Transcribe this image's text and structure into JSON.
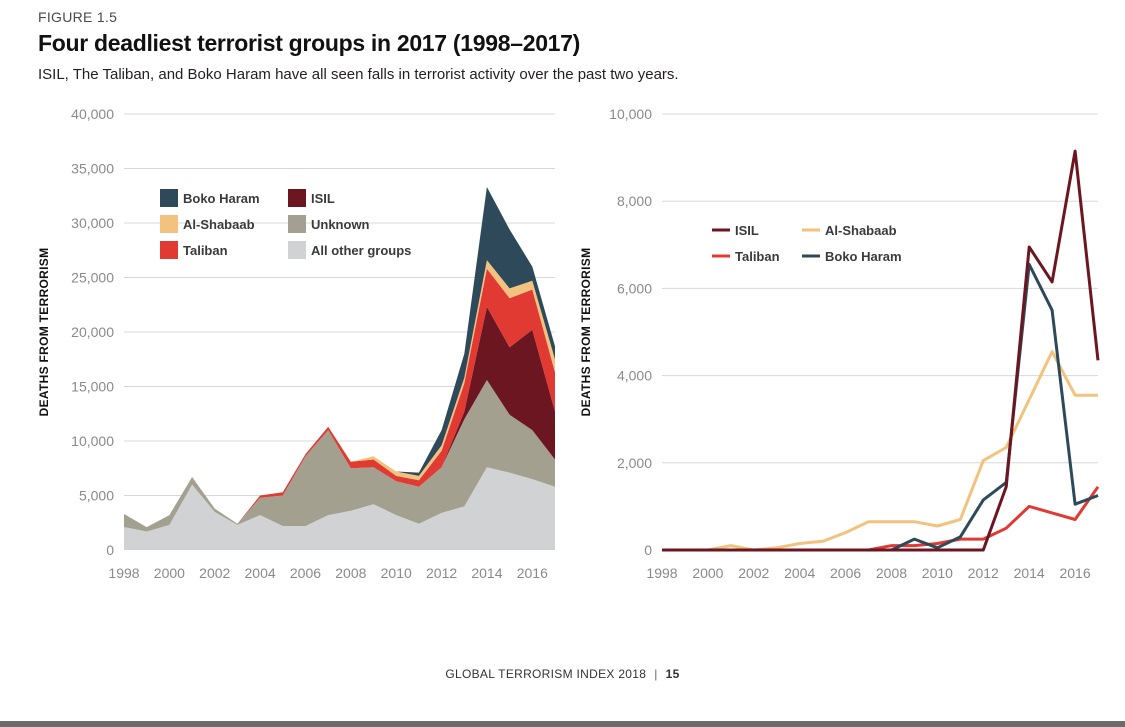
{
  "figure_label": "FIGURE 1.5",
  "title": "Four deadliest terrorist groups in 2017 (1998–2017)",
  "subtitle": "ISIL, The Taliban, and Boko Haram have all seen falls in terrorist activity over the past two years.",
  "footer": {
    "publication": "GLOBAL TERRORISM INDEX 2018",
    "page": "15"
  },
  "colors": {
    "isil": "#6b1620",
    "taliban": "#e03a32",
    "al_shabaab": "#f2c27e",
    "boko_haram": "#2e4a5a",
    "unknown": "#a3a090",
    "other": "#d1d2d4",
    "grid": "#d8d8d8"
  },
  "chart_data": [
    {
      "type": "area",
      "stacked": true,
      "title": "",
      "xlabel": "",
      "ylabel": "DEATHS FROM TERRORISM",
      "ylim": [
        0,
        40000
      ],
      "yticks": [
        0,
        5000,
        10000,
        15000,
        20000,
        25000,
        30000,
        35000,
        40000
      ],
      "ytick_labels": [
        "0",
        "5,000",
        "10,000",
        "15,000",
        "20,000",
        "25,000",
        "30,000",
        "35,000",
        "40,000"
      ],
      "xlim": [
        1998,
        2017
      ],
      "xticks": [
        1998,
        2000,
        2002,
        2004,
        2006,
        2008,
        2010,
        2012,
        2014,
        2016
      ],
      "xtick_labels": [
        "1998",
        "2000",
        "2002",
        "2004",
        "2006",
        "2008",
        "2010",
        "2012",
        "2014",
        "2016"
      ],
      "x": [
        1998,
        1999,
        2000,
        2001,
        2002,
        2003,
        2004,
        2005,
        2006,
        2007,
        2008,
        2009,
        2010,
        2011,
        2012,
        2013,
        2014,
        2015,
        2016,
        2017
      ],
      "series": [
        {
          "name": "All other groups",
          "key": "other",
          "values": [
            2100,
            1700,
            2300,
            6000,
            3500,
            2300,
            3200,
            2200,
            2200,
            3200,
            3600,
            4200,
            3200,
            2400,
            3400,
            4000,
            7600,
            7100,
            6500,
            5800
          ]
        },
        {
          "name": "Unknown",
          "key": "unknown",
          "values": [
            1200,
            400,
            900,
            700,
            300,
            100,
            1600,
            2800,
            6400,
            7800,
            3900,
            3400,
            3100,
            3400,
            4200,
            8000,
            8000,
            5300,
            4500,
            2500
          ]
        },
        {
          "name": "ISIL",
          "key": "isil",
          "values": [
            0,
            0,
            0,
            0,
            0,
            0,
            0,
            0,
            0,
            0,
            0,
            0,
            0,
            0,
            0,
            700,
            6700,
            6200,
            9200,
            4400
          ]
        },
        {
          "name": "Taliban",
          "key": "taliban",
          "values": [
            0,
            0,
            0,
            0,
            0,
            0,
            200,
            300,
            200,
            300,
            600,
            700,
            500,
            600,
            1500,
            2600,
            3500,
            4500,
            3700,
            3600
          ]
        },
        {
          "name": "Al-Shabaab",
          "key": "al_shabaab",
          "values": [
            0,
            0,
            0,
            0,
            0,
            0,
            0,
            0,
            0,
            0,
            0,
            300,
            400,
            400,
            500,
            500,
            800,
            900,
            800,
            1200
          ]
        },
        {
          "name": "Boko Haram",
          "key": "boko_haram",
          "values": [
            0,
            0,
            0,
            0,
            0,
            0,
            0,
            0,
            0,
            0,
            0,
            0,
            0,
            300,
            1400,
            2200,
            6700,
            5400,
            1300,
            1200
          ]
        }
      ],
      "legend": [
        {
          "name": "Boko Haram",
          "key": "boko_haram"
        },
        {
          "name": "ISIL",
          "key": "isil"
        },
        {
          "name": "Al-Shabaab",
          "key": "al_shabaab"
        },
        {
          "name": "Unknown",
          "key": "unknown"
        },
        {
          "name": "Taliban",
          "key": "taliban"
        },
        {
          "name": "All other groups",
          "key": "other"
        }
      ],
      "legend_position": "top-left"
    },
    {
      "type": "line",
      "title": "",
      "xlabel": "",
      "ylabel": "DEATHS FROM TERRORISM",
      "ylim": [
        0,
        10000
      ],
      "yticks": [
        0,
        2000,
        4000,
        6000,
        8000,
        10000
      ],
      "ytick_labels": [
        "0",
        "2,000",
        "4,000",
        "6,000",
        "8,000",
        "10,000"
      ],
      "xlim": [
        1998,
        2017
      ],
      "xticks": [
        1998,
        2000,
        2002,
        2004,
        2006,
        2008,
        2010,
        2012,
        2014,
        2016
      ],
      "xtick_labels": [
        "1998",
        "2000",
        "2002",
        "2004",
        "2006",
        "2008",
        "2010",
        "2012",
        "2014",
        "2016"
      ],
      "x": [
        1998,
        1999,
        2000,
        2001,
        2002,
        2003,
        2004,
        2005,
        2006,
        2007,
        2008,
        2009,
        2010,
        2011,
        2012,
        2013,
        2014,
        2015,
        2016,
        2017
      ],
      "series": [
        {
          "name": "Al-Shabaab",
          "key": "al_shabaab",
          "values": [
            0,
            0,
            0,
            100,
            0,
            50,
            150,
            200,
            400,
            650,
            650,
            650,
            550,
            700,
            2050,
            2350,
            3450,
            4550,
            3550,
            3550
          ]
        },
        {
          "name": "Taliban",
          "key": "taliban",
          "values": [
            0,
            0,
            0,
            0,
            0,
            0,
            0,
            0,
            0,
            0,
            100,
            100,
            150,
            250,
            250,
            500,
            1000,
            850,
            700,
            1450
          ]
        },
        {
          "name": "Boko Haram",
          "key": "boko_haram",
          "values": [
            0,
            0,
            0,
            0,
            0,
            0,
            0,
            0,
            0,
            0,
            0,
            250,
            50,
            300,
            1150,
            1550,
            6550,
            5500,
            1050,
            1250
          ]
        },
        {
          "name": "ISIL",
          "key": "isil",
          "values": [
            0,
            0,
            0,
            0,
            0,
            0,
            0,
            0,
            0,
            0,
            0,
            0,
            0,
            0,
            0,
            1450,
            6950,
            6150,
            9150,
            4350
          ]
        }
      ],
      "legend": [
        {
          "name": "ISIL",
          "key": "isil"
        },
        {
          "name": "Al-Shabaab",
          "key": "al_shabaab"
        },
        {
          "name": "Taliban",
          "key": "taliban"
        },
        {
          "name": "Boko Haram",
          "key": "boko_haram"
        }
      ],
      "legend_position": "top-left"
    }
  ]
}
